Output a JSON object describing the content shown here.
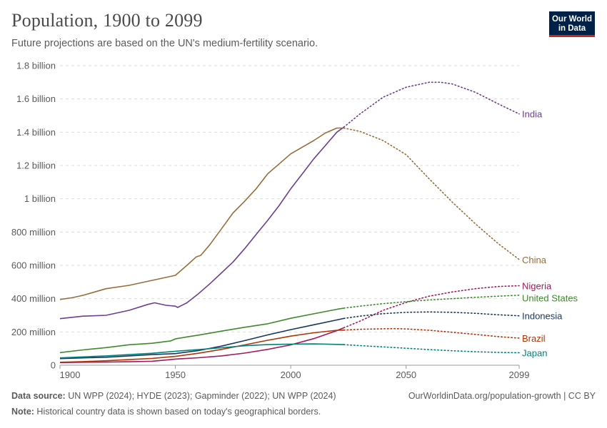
{
  "header": {
    "title": "Population, 1900 to 2099",
    "subtitle": "Future projections are based on the UN's medium-fertility scenario.",
    "logo_line1": "Our World",
    "logo_line2": "in Data"
  },
  "footer": {
    "source_label": "Data source:",
    "source_text": " UN WPP (2024); HYDE (2023); Gapminder (2022); UN WPP (2024)",
    "url": "OurWorldinData.org/population-growth | CC BY",
    "note_label": "Note:",
    "note_text": " Historical country data is shown based on today's geographical borders."
  },
  "chart_data": {
    "type": "line",
    "title": "Population, 1900 to 2099",
    "xlim": [
      1900,
      2099
    ],
    "ylim": [
      0,
      1800000000
    ],
    "x_ticks": [
      1900,
      1950,
      2000,
      2050,
      2099
    ],
    "y_ticks": [
      {
        "value": 0,
        "label": "0"
      },
      {
        "value": 200000000,
        "label": "200 million"
      },
      {
        "value": 400000000,
        "label": "400 million"
      },
      {
        "value": 600000000,
        "label": "600 million"
      },
      {
        "value": 800000000,
        "label": "800 million"
      },
      {
        "value": 1000000000,
        "label": "1 billion"
      },
      {
        "value": 1200000000,
        "label": "1.2 billion"
      },
      {
        "value": 1400000000,
        "label": "1.4 billion"
      },
      {
        "value": 1600000000,
        "label": "1.6 billion"
      },
      {
        "value": 1800000000,
        "label": "1.8 billion"
      }
    ],
    "grid": true,
    "projection_start": 2023,
    "series": [
      {
        "name": "India",
        "color": "#6d3e91",
        "historical": [
          [
            1900,
            280
          ],
          [
            1910,
            295
          ],
          [
            1920,
            300
          ],
          [
            1930,
            330
          ],
          [
            1938,
            365
          ],
          [
            1941,
            375
          ],
          [
            1946,
            360
          ],
          [
            1950,
            355
          ],
          [
            1951,
            347
          ],
          [
            1955,
            375
          ],
          [
            1960,
            430
          ],
          [
            1965,
            490
          ],
          [
            1970,
            555
          ],
          [
            1975,
            620
          ],
          [
            1980,
            700
          ],
          [
            1985,
            785
          ],
          [
            1990,
            870
          ],
          [
            1995,
            960
          ],
          [
            2000,
            1060
          ],
          [
            2005,
            1150
          ],
          [
            2010,
            1240
          ],
          [
            2015,
            1320
          ],
          [
            2020,
            1400
          ],
          [
            2023,
            1430
          ]
        ],
        "projection": [
          [
            2023,
            1430
          ],
          [
            2030,
            1510
          ],
          [
            2040,
            1610
          ],
          [
            2050,
            1670
          ],
          [
            2060,
            1700
          ],
          [
            2065,
            1700
          ],
          [
            2070,
            1690
          ],
          [
            2080,
            1640
          ],
          [
            2090,
            1570
          ],
          [
            2099,
            1510
          ]
        ]
      },
      {
        "name": "China",
        "color": "#996d39",
        "historical": [
          [
            1900,
            395
          ],
          [
            1905,
            405
          ],
          [
            1910,
            420
          ],
          [
            1915,
            440
          ],
          [
            1920,
            460
          ],
          [
            1930,
            480
          ],
          [
            1940,
            510
          ],
          [
            1950,
            540
          ],
          [
            1955,
            600
          ],
          [
            1959,
            650
          ],
          [
            1961,
            660
          ],
          [
            1965,
            725
          ],
          [
            1970,
            820
          ],
          [
            1975,
            915
          ],
          [
            1980,
            985
          ],
          [
            1985,
            1060
          ],
          [
            1990,
            1150
          ],
          [
            1995,
            1210
          ],
          [
            2000,
            1270
          ],
          [
            2005,
            1310
          ],
          [
            2010,
            1350
          ],
          [
            2015,
            1395
          ],
          [
            2020,
            1425
          ],
          [
            2023,
            1425
          ]
        ],
        "projection": [
          [
            2023,
            1425
          ],
          [
            2030,
            1405
          ],
          [
            2040,
            1350
          ],
          [
            2050,
            1265
          ],
          [
            2060,
            1120
          ],
          [
            2070,
            980
          ],
          [
            2080,
            850
          ],
          [
            2090,
            730
          ],
          [
            2099,
            635
          ]
        ]
      },
      {
        "name": "Nigeria",
        "color": "#a2195c",
        "historical": [
          [
            1900,
            16
          ],
          [
            1910,
            18
          ],
          [
            1920,
            19
          ],
          [
            1930,
            21
          ],
          [
            1940,
            24
          ],
          [
            1950,
            37
          ],
          [
            1960,
            45
          ],
          [
            1970,
            56
          ],
          [
            1980,
            73
          ],
          [
            1990,
            95
          ],
          [
            2000,
            122
          ],
          [
            2010,
            160
          ],
          [
            2020,
            208
          ],
          [
            2023,
            225
          ]
        ],
        "projection": [
          [
            2023,
            225
          ],
          [
            2030,
            265
          ],
          [
            2040,
            330
          ],
          [
            2050,
            377
          ],
          [
            2060,
            415
          ],
          [
            2070,
            440
          ],
          [
            2080,
            460
          ],
          [
            2090,
            473
          ],
          [
            2099,
            478
          ]
        ]
      },
      {
        "name": "United States",
        "color": "#3d8a2b",
        "historical": [
          [
            1900,
            76
          ],
          [
            1910,
            92
          ],
          [
            1920,
            106
          ],
          [
            1930,
            123
          ],
          [
            1940,
            132
          ],
          [
            1948,
            146
          ],
          [
            1950,
            158
          ],
          [
            1955,
            170
          ],
          [
            1960,
            181
          ],
          [
            1970,
            205
          ],
          [
            1980,
            228
          ],
          [
            1990,
            249
          ],
          [
            2000,
            282
          ],
          [
            2010,
            309
          ],
          [
            2020,
            336
          ],
          [
            2023,
            343
          ]
        ],
        "projection": [
          [
            2023,
            343
          ],
          [
            2030,
            355
          ],
          [
            2040,
            370
          ],
          [
            2050,
            382
          ],
          [
            2060,
            392
          ],
          [
            2070,
            400
          ],
          [
            2080,
            408
          ],
          [
            2090,
            415
          ],
          [
            2099,
            421
          ]
        ]
      },
      {
        "name": "Indonesia",
        "color": "#18375f",
        "historical": [
          [
            1900,
            40
          ],
          [
            1910,
            44
          ],
          [
            1920,
            48
          ],
          [
            1930,
            56
          ],
          [
            1940,
            64
          ],
          [
            1950,
            70
          ],
          [
            1960,
            88
          ],
          [
            1970,
            115
          ],
          [
            1980,
            148
          ],
          [
            1990,
            182
          ],
          [
            2000,
            214
          ],
          [
            2010,
            243
          ],
          [
            2020,
            272
          ],
          [
            2023,
            281
          ]
        ],
        "projection": [
          [
            2023,
            281
          ],
          [
            2030,
            295
          ],
          [
            2040,
            310
          ],
          [
            2050,
            318
          ],
          [
            2060,
            320
          ],
          [
            2070,
            318
          ],
          [
            2080,
            312
          ],
          [
            2090,
            303
          ],
          [
            2099,
            297
          ]
        ]
      },
      {
        "name": "Brazil",
        "color": "#b13507",
        "historical": [
          [
            1900,
            18
          ],
          [
            1910,
            22
          ],
          [
            1920,
            27
          ],
          [
            1930,
            34
          ],
          [
            1940,
            41
          ],
          [
            1950,
            53
          ],
          [
            1960,
            72
          ],
          [
            1970,
            95
          ],
          [
            1980,
            122
          ],
          [
            1990,
            150
          ],
          [
            2000,
            175
          ],
          [
            2010,
            195
          ],
          [
            2020,
            210
          ],
          [
            2023,
            211
          ]
        ],
        "projection": [
          [
            2023,
            211
          ],
          [
            2030,
            216
          ],
          [
            2040,
            219
          ],
          [
            2045,
            220
          ],
          [
            2050,
            218
          ],
          [
            2060,
            210
          ],
          [
            2070,
            198
          ],
          [
            2080,
            185
          ],
          [
            2090,
            172
          ],
          [
            2099,
            163
          ]
        ]
      },
      {
        "name": "Japan",
        "color": "#00847e",
        "historical": [
          [
            1900,
            44
          ],
          [
            1910,
            50
          ],
          [
            1920,
            56
          ],
          [
            1930,
            64
          ],
          [
            1940,
            72
          ],
          [
            1950,
            84
          ],
          [
            1960,
            94
          ],
          [
            1970,
            105
          ],
          [
            1980,
            117
          ],
          [
            1990,
            124
          ],
          [
            2000,
            127
          ],
          [
            2010,
            128
          ],
          [
            2020,
            125
          ],
          [
            2023,
            124
          ]
        ],
        "projection": [
          [
            2023,
            124
          ],
          [
            2030,
            118
          ],
          [
            2040,
            110
          ],
          [
            2050,
            102
          ],
          [
            2060,
            94
          ],
          [
            2070,
            87
          ],
          [
            2080,
            81
          ],
          [
            2090,
            77
          ],
          [
            2099,
            75
          ]
        ]
      }
    ],
    "value_unit_note": "series values in millions of people"
  }
}
